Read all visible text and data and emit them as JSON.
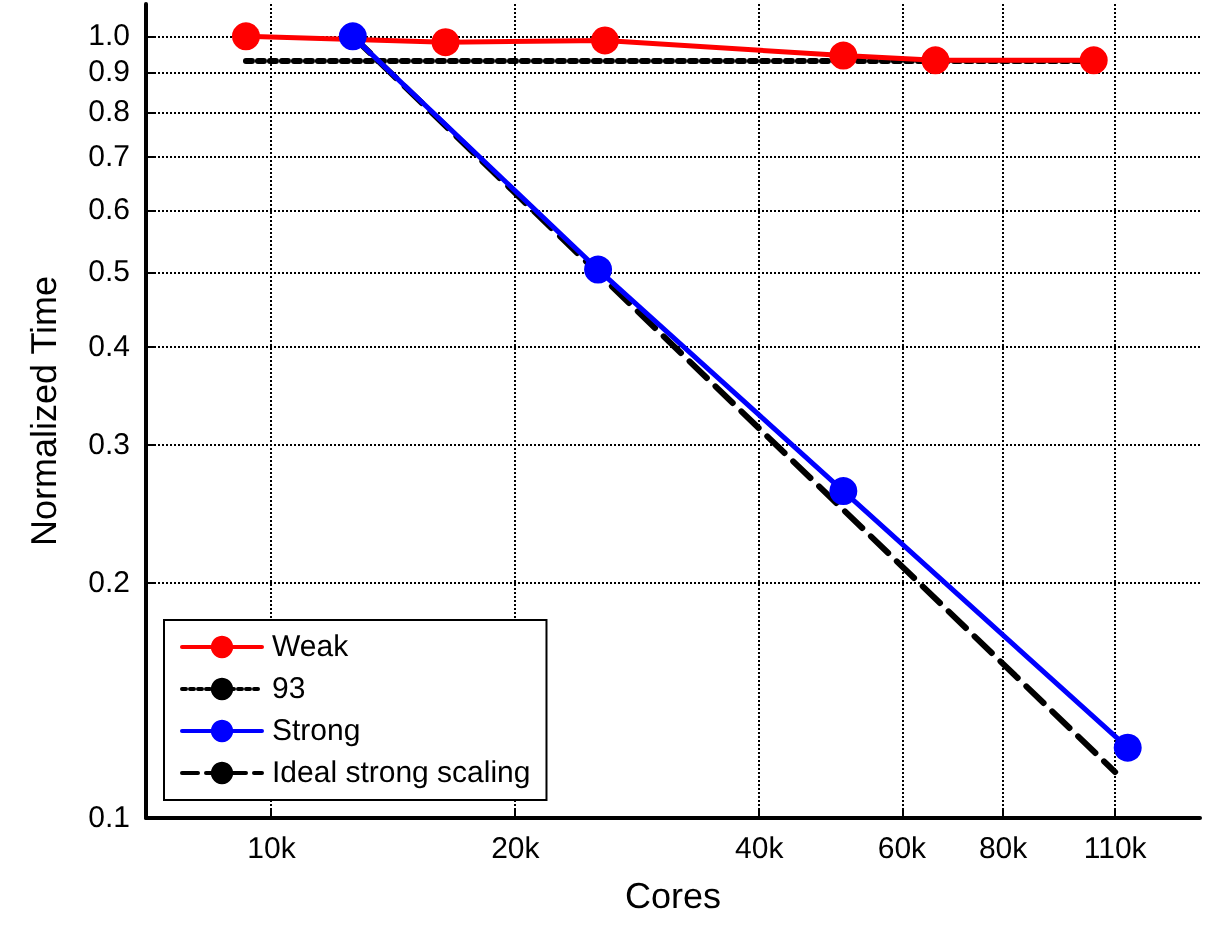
{
  "chart_data": {
    "type": "line",
    "xlabel": "Cores",
    "ylabel": "Normalized Time",
    "log": "xy",
    "grid": true,
    "legend": "bottom left",
    "xlim": [
      7000,
      140000
    ],
    "xticks": [
      {
        "value": 10000,
        "label": "10k"
      },
      {
        "value": 20000,
        "label": "20k"
      },
      {
        "value": 40000,
        "label": "40k"
      },
      {
        "value": 60000,
        "label": "60k"
      },
      {
        "value": 80000,
        "label": "80k"
      },
      {
        "value": 110000,
        "label": "110k"
      }
    ],
    "ylim": [
      0.1,
      1.1
    ],
    "yticks": [
      0.1,
      0.2,
      0.3,
      0.4,
      0.5,
      0.6,
      0.7,
      0.8,
      0.9,
      {
        "value": 1,
        "label": "1.0"
      }
    ],
    "series": [
      {
        "name": "Weak",
        "color": "#ff0000",
        "marker": "circle",
        "line_style": "solid",
        "x": [
          9300,
          16400,
          25800,
          50800,
          66000,
          103500
        ],
        "values": [
          1.0,
          0.983,
          0.988,
          0.945,
          0.932,
          0.932
        ]
      },
      {
        "name": "93",
        "color": "#000000",
        "marker": "none",
        "line_style": "dotted",
        "x": [
          9300,
          103500
        ],
        "values": [
          0.93,
          0.93
        ]
      },
      {
        "name": "Strong",
        "color": "#0000ff",
        "marker": "circle",
        "line_style": "solid",
        "x": [
          12600,
          25300,
          50800,
          114000
        ],
        "values": [
          1.0,
          0.503,
          0.262,
          0.123
        ]
      },
      {
        "name": "Ideal strong scaling",
        "color": "#000000",
        "marker": "none",
        "line_style": "dashed",
        "x": [
          12600,
          110000
        ],
        "values": [
          1.0,
          0.1145
        ]
      }
    ]
  }
}
